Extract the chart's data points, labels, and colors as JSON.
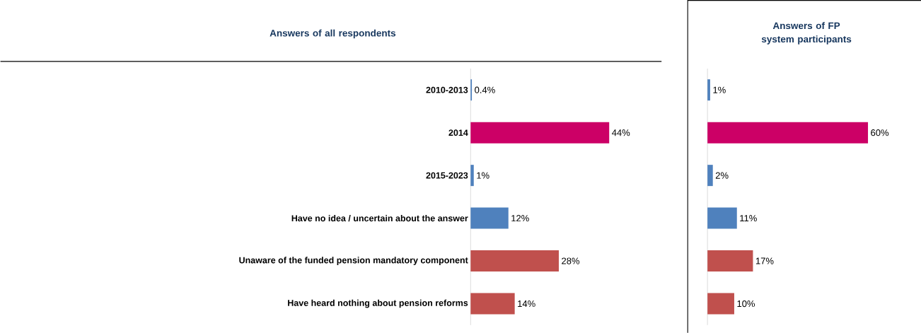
{
  "chart_data": [
    {
      "type": "bar",
      "orientation": "horizontal",
      "title": "Answers of all respondents",
      "categories": [
        "2010-2013",
        "2014",
        "2015-2023",
        "Have no idea / uncertain about the answer",
        "Unaware of the funded pension mandatory component",
        "Have heard nothing about pension reforms"
      ],
      "values": [
        0.4,
        44,
        1,
        12,
        28,
        14
      ],
      "colors": [
        "#4f81bd",
        "#cc0066",
        "#4f81bd",
        "#4f81bd",
        "#c0504d",
        "#c0504d"
      ],
      "value_labels": [
        "0.4%",
        "44%",
        "1%",
        "12%",
        "28%",
        "14%"
      ],
      "tick_labels": "y"
    },
    {
      "type": "bar",
      "orientation": "horizontal",
      "title": "Answers of FP system participants",
      "categories": [
        null,
        null,
        null,
        null,
        null,
        null
      ],
      "values": [
        1,
        60,
        2,
        11,
        17,
        10
      ],
      "colors": [
        "#4f81bd",
        "#cc0066",
        "#4f81bd",
        "#4f81bd",
        "#c0504d",
        "#c0504d"
      ],
      "value_labels": [
        "1%",
        "60%",
        "2%",
        "11%",
        "17%",
        "10%"
      ],
      "tick_labels": false
    }
  ]
}
